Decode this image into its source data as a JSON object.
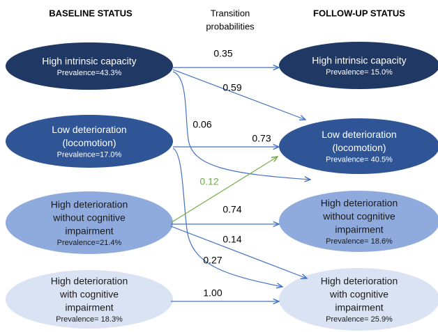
{
  "headers": {
    "baseline": "BASELINE STATUS",
    "transition": [
      "Transition",
      "probabilities"
    ],
    "followup": "FOLLOW-UP STATUS"
  },
  "baseline": [
    {
      "lines": [
        "High intrinsic capacity"
      ],
      "prevalence": "Prevalence=43.3%"
    },
    {
      "lines": [
        "Low deterioration",
        "(locomotion)"
      ],
      "prevalence": "Prevalence=17.0%"
    },
    {
      "lines": [
        "High deterioration",
        "without cognitive",
        "impairment"
      ],
      "prevalence": "Prevalence=21.4%"
    },
    {
      "lines": [
        "High deterioration",
        "with cognitive",
        "impairment"
      ],
      "prevalence": "Prevalence= 18.3%"
    }
  ],
  "followup": [
    {
      "lines": [
        "High intrinsic capacity"
      ],
      "prevalence": "Prevalence= 15.0%"
    },
    {
      "lines": [
        "Low deterioration",
        "(locomotion)"
      ],
      "prevalence": "Prevalence= 40.5%"
    },
    {
      "lines": [
        "High deterioration",
        "without cognitive",
        "impairment"
      ],
      "prevalence": "Prevalence= 18.6%"
    },
    {
      "lines": [
        "High deterioration",
        "with cognitive",
        "impairment"
      ],
      "prevalence": "Prevalence= 25.9%"
    }
  ],
  "transitions": [
    "0.35",
    "0.59",
    "0.06",
    "0.73",
    "0.27",
    "0.12",
    "0.74",
    "0.14",
    "1.00"
  ]
}
